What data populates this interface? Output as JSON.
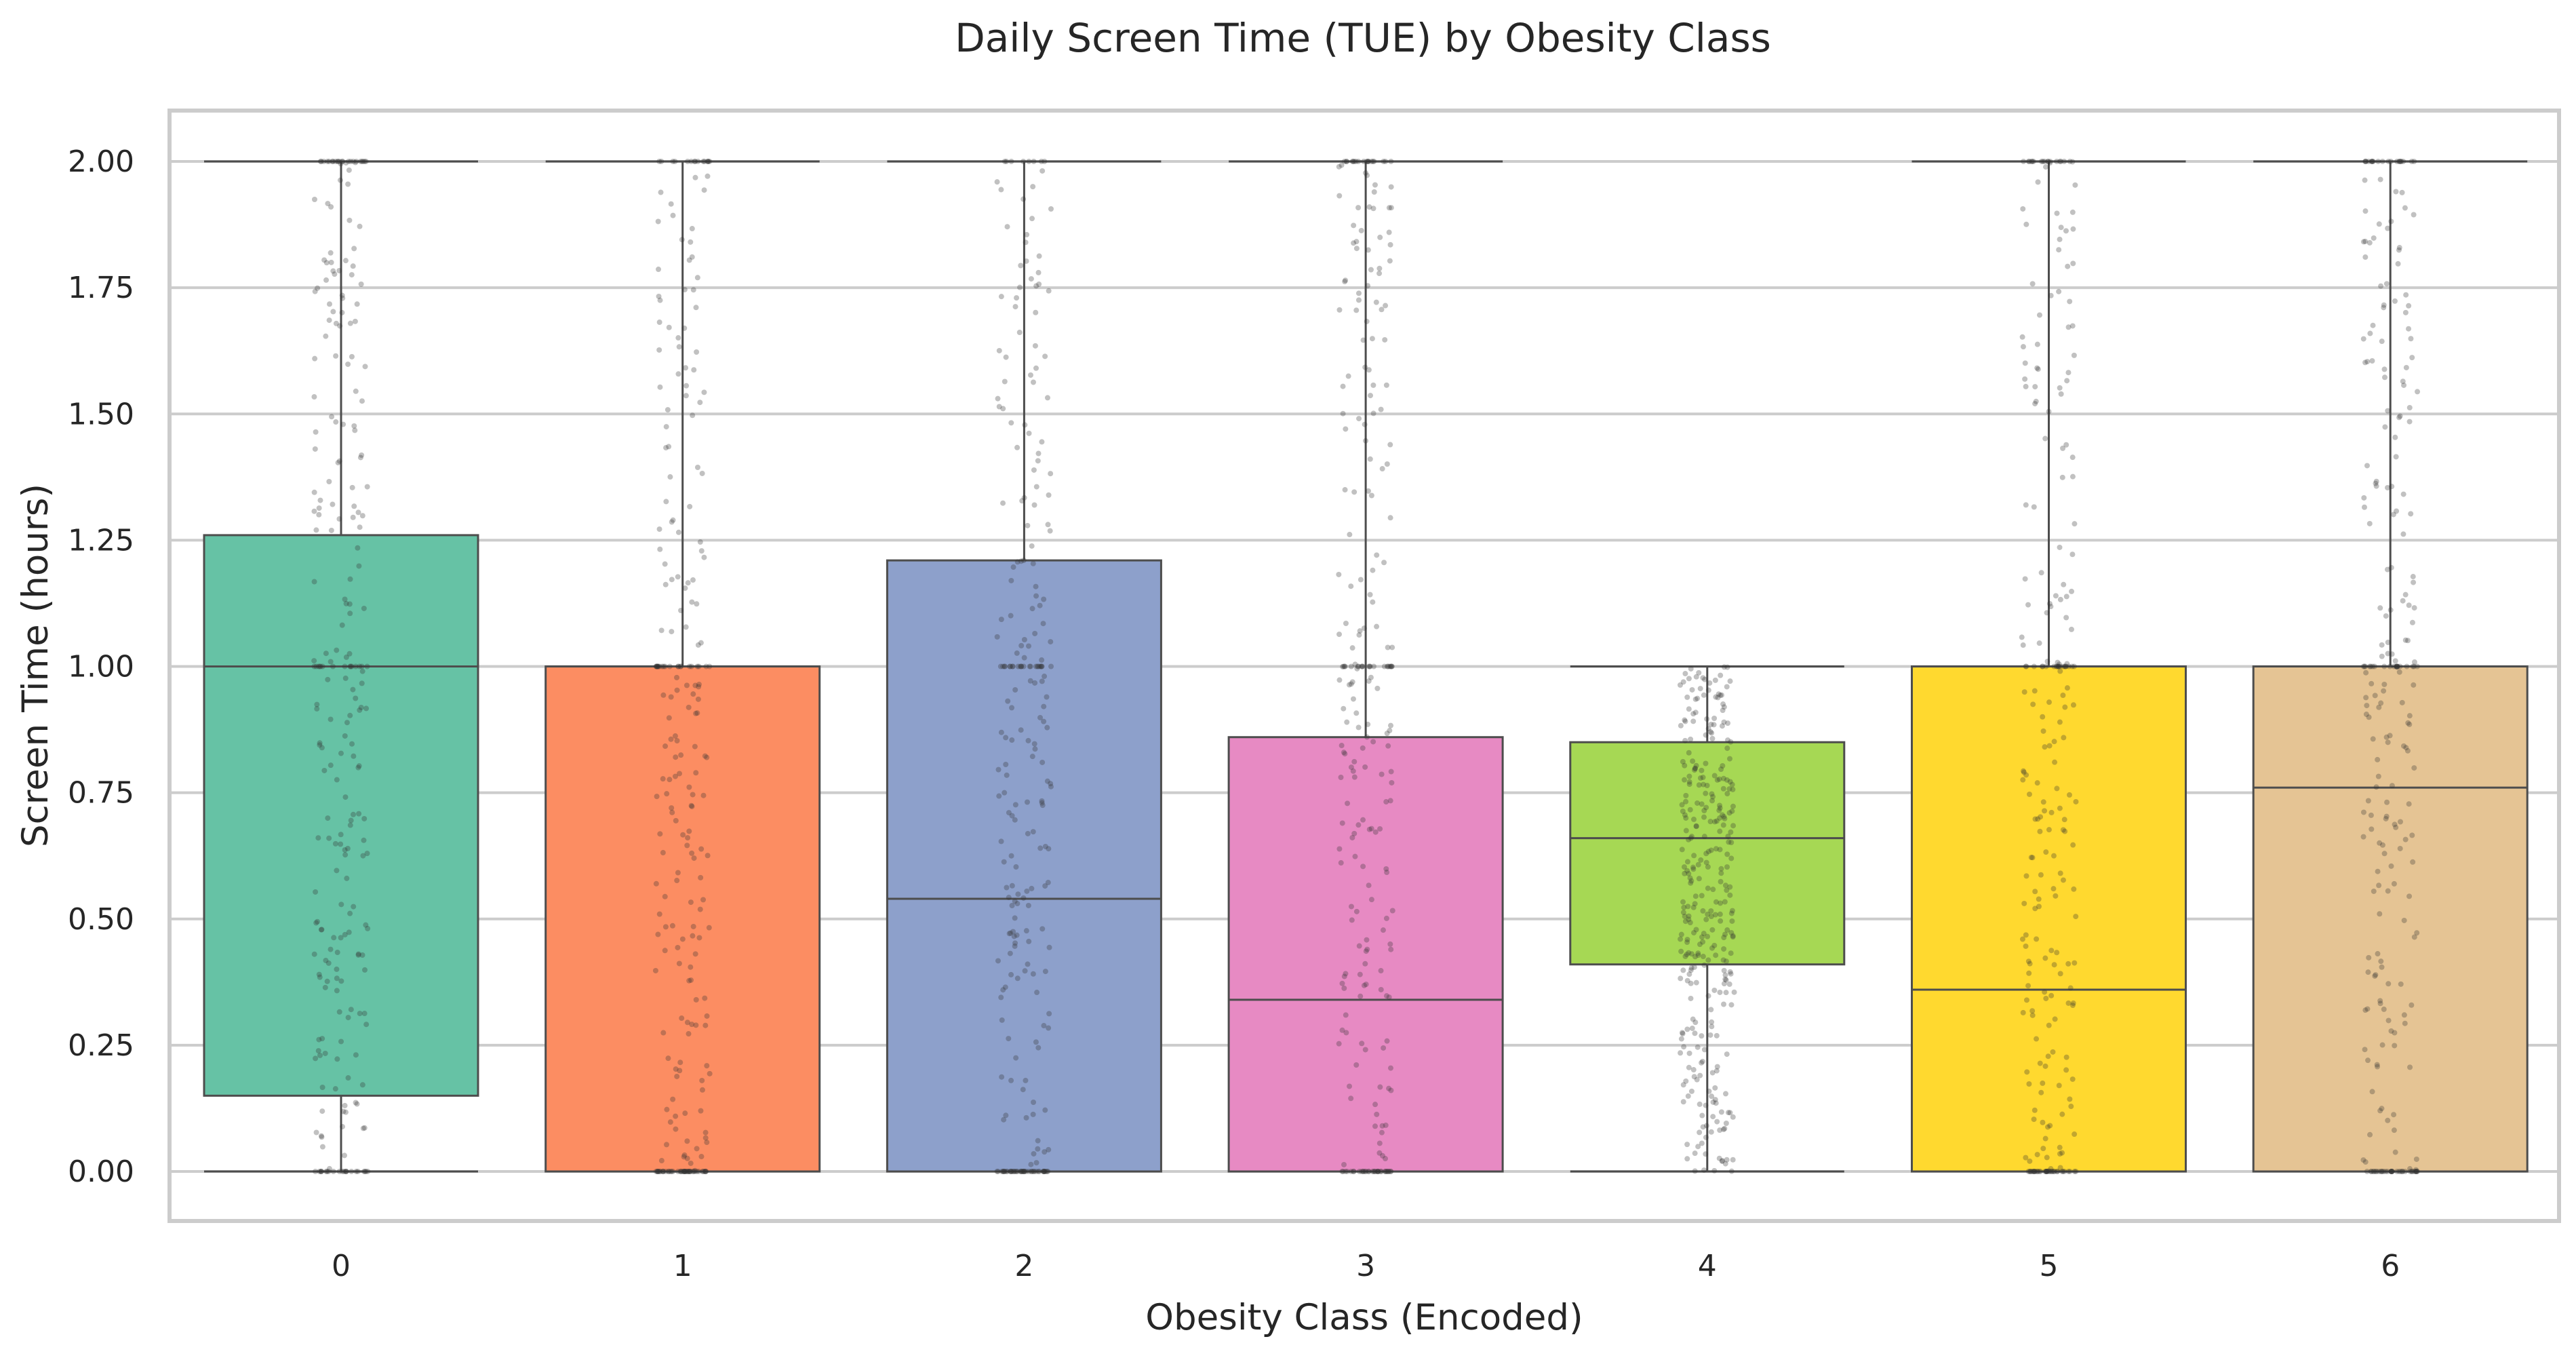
{
  "chart_data": {
    "type": "box",
    "title": "Daily Screen Time (TUE) by Obesity Class",
    "xlabel": "Obesity Class (Encoded)",
    "ylabel": "Screen Time (hours)",
    "ylim": [
      -0.1,
      2.1
    ],
    "y_ticks": [
      "0.00",
      "0.25",
      "0.50",
      "0.75",
      "1.00",
      "1.25",
      "1.50",
      "1.75",
      "2.00"
    ],
    "grid": "horizontal",
    "categories": [
      "0",
      "1",
      "2",
      "3",
      "4",
      "5",
      "6"
    ],
    "boxes": [
      {
        "category": "0",
        "color": "#66c2a5",
        "whisker_low": 0.0,
        "q1": 0.15,
        "median": 1.0,
        "q3": 1.26,
        "whisker_high": 2.0
      },
      {
        "category": "1",
        "color": "#fc8d62",
        "whisker_low": 0.0,
        "q1": 0.0,
        "median": 1.0,
        "q3": 1.0,
        "whisker_high": 2.0
      },
      {
        "category": "2",
        "color": "#8da0cb",
        "whisker_low": 0.0,
        "q1": 0.0,
        "median": 0.54,
        "q3": 1.21,
        "whisker_high": 2.0
      },
      {
        "category": "3",
        "color": "#e78ac3",
        "whisker_low": 0.0,
        "q1": 0.0,
        "median": 0.34,
        "q3": 0.86,
        "whisker_high": 2.0
      },
      {
        "category": "4",
        "color": "#a6d854",
        "whisker_low": 0.0,
        "q1": 0.41,
        "median": 0.66,
        "q3": 0.85,
        "whisker_high": 1.0
      },
      {
        "category": "5",
        "color": "#ffd92f",
        "whisker_low": 0.0,
        "q1": 0.0,
        "median": 0.36,
        "q3": 1.0,
        "whisker_high": 2.0
      },
      {
        "category": "6",
        "color": "#e5c494",
        "whisker_low": 0.0,
        "q1": 0.0,
        "median": 0.76,
        "q3": 1.0,
        "whisker_high": 2.0
      }
    ],
    "overlay": "jittered strip points (semi-transparent dark gray)"
  }
}
